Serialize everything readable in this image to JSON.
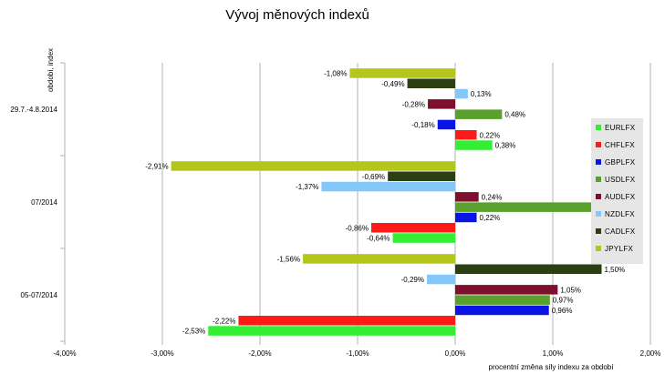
{
  "chart_data": {
    "type": "bar",
    "orientation": "horizontal",
    "title": "Vývoj měnových indexů",
    "xlabel": "procentní změna síly indexu za období",
    "ylabel": "období, index",
    "xlim": [
      -4,
      2
    ],
    "x_ticks": [
      "-4,00%",
      "-3,00%",
      "-2,00%",
      "-1,00%",
      "0,00%",
      "1,00%",
      "2,00%"
    ],
    "grid": "vertical",
    "legend_position": "right",
    "categories": [
      "29.7.-4.8.2014",
      "07/2014",
      "05-07/2014"
    ],
    "series": [
      {
        "name": "EURLFX",
        "color": "#33ee33",
        "values": [
          0.38,
          -0.64,
          -2.53
        ],
        "labels": [
          "0,38%",
          "-0,64%",
          "-2,53%"
        ]
      },
      {
        "name": "CHFLFX",
        "color": "#ff1a1a",
        "values": [
          0.22,
          -0.86,
          -2.22
        ],
        "labels": [
          "0,22%",
          "-0,86%",
          "-2,22%"
        ]
      },
      {
        "name": "GBPLFX",
        "color": "#0a14e6",
        "values": [
          -0.18,
          0.22,
          0.96
        ],
        "labels": [
          "-0,18%",
          "0,22%",
          "0,96%"
        ]
      },
      {
        "name": "USDLFX",
        "color": "#5aa02c",
        "values": [
          0.48,
          1.43,
          0.97
        ],
        "labels": [
          "0,48%",
          "",
          "0,97%"
        ]
      },
      {
        "name": "AUDLFX",
        "color": "#7f0f2e",
        "values": [
          -0.28,
          0.24,
          1.05
        ],
        "labels": [
          "-0,28%",
          "0,24%",
          "1,05%"
        ]
      },
      {
        "name": "NZDLFX",
        "color": "#84c8fa",
        "values": [
          0.13,
          -1.37,
          -0.29
        ],
        "labels": [
          "0,13%",
          "-1,37%",
          "-0,29%"
        ]
      },
      {
        "name": "CADLFX",
        "color": "#2b3f12",
        "values": [
          -0.49,
          -0.69,
          1.5
        ],
        "labels": [
          "-0,49%",
          "-0,69%",
          "1,50%"
        ]
      },
      {
        "name": "JPYLFX",
        "color": "#b4c61b",
        "values": [
          -1.08,
          -2.91,
          -1.56
        ],
        "labels": [
          "-1,08%",
          "-2,91%",
          "-1,56%"
        ]
      }
    ]
  }
}
